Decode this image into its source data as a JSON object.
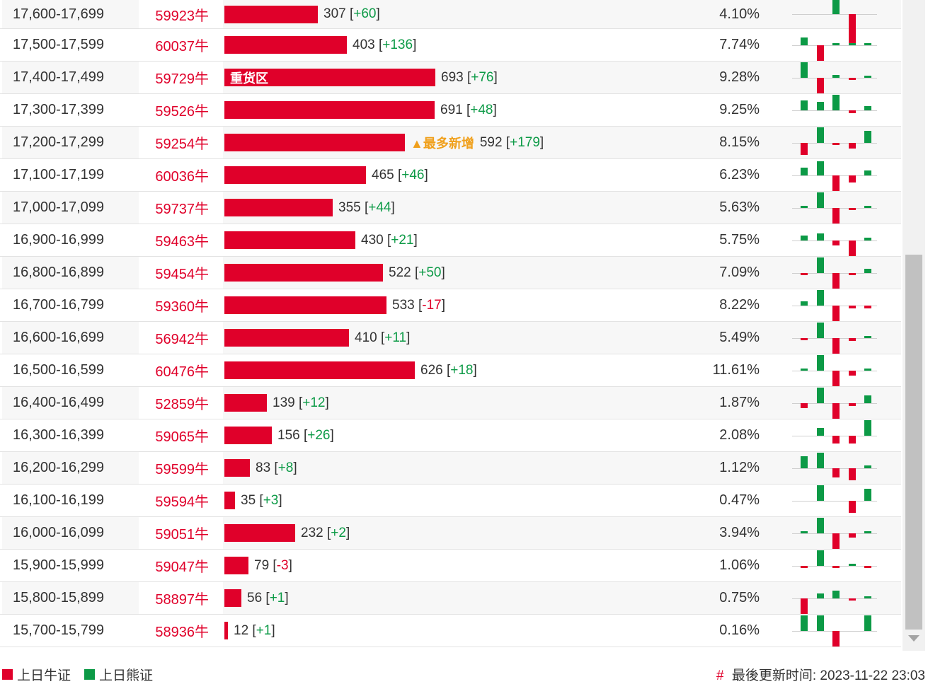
{
  "rows": [
    {
      "range": "17,600-17,699",
      "bull": "59923牛",
      "count": "307",
      "change": "+60",
      "pct": "4.10%",
      "bar": 307,
      "mini": [
        0,
        0,
        3,
        -4
      ]
    },
    {
      "range": "17,500-17,599",
      "bull": "60037牛",
      "count": "403",
      "change": "+136",
      "pct": "7.74%",
      "bar": 403,
      "mini": [
        1,
        -2,
        0.3,
        0.3,
        0.3
      ]
    },
    {
      "range": "17,400-17,499",
      "bull": "59729牛",
      "count": "693",
      "change": "+76",
      "pct": "9.28%",
      "bar": 693,
      "label": "重货区",
      "mini": [
        2,
        -2,
        0.4,
        -0.2,
        0.2
      ]
    },
    {
      "range": "17,300-17,399",
      "bull": "59526牛",
      "count": "691",
      "change": "+48",
      "pct": "9.25%",
      "bar": 691,
      "mini": [
        1.3,
        1.1,
        2,
        -0.4,
        0.5
      ]
    },
    {
      "range": "17,200-17,299",
      "bull": "59254牛",
      "count": "592",
      "change": "+179",
      "pct": "8.15%",
      "bar": 592,
      "tag": "▲最多新增",
      "mini": [
        -1.5,
        2,
        -0.2,
        -0.7,
        1.5
      ]
    },
    {
      "range": "17,100-17,199",
      "bull": "60036牛",
      "count": "465",
      "change": "+46",
      "pct": "6.23%",
      "bar": 465,
      "mini": [
        1,
        1.8,
        -2,
        -0.9,
        0.6
      ]
    },
    {
      "range": "17,000-17,099",
      "bull": "59737牛",
      "count": "355",
      "change": "+44",
      "pct": "5.63%",
      "bar": 355,
      "mini": [
        0.2,
        2,
        -2,
        -0.3,
        0.2
      ]
    },
    {
      "range": "16,900-16,999",
      "bull": "59463牛",
      "count": "430",
      "change": "+21",
      "pct": "5.75%",
      "bar": 430,
      "mini": [
        0.6,
        0.9,
        -0.6,
        -2,
        0.4
      ]
    },
    {
      "range": "16,800-16,899",
      "bull": "59454牛",
      "count": "522",
      "change": "+50",
      "pct": "7.09%",
      "bar": 522,
      "mini": [
        -0.2,
        2,
        -2,
        -0.3,
        0.5
      ]
    },
    {
      "range": "16,700-16,799",
      "bull": "59360牛",
      "count": "533",
      "change": "-17",
      "pct": "8.22%",
      "bar": 533,
      "mini": [
        0.5,
        2,
        -2,
        -0.4,
        -0.4
      ]
    },
    {
      "range": "16,600-16,699",
      "bull": "56942牛",
      "count": "410",
      "change": "+11",
      "pct": "5.49%",
      "bar": 410,
      "mini": [
        -0.2,
        2,
        -2,
        -0.4,
        0.2
      ]
    },
    {
      "range": "16,500-16,599",
      "bull": "60476牛",
      "count": "626",
      "change": "+18",
      "pct": "11.61%",
      "bar": 626,
      "mini": [
        0.3,
        2,
        -2,
        -0.6,
        0.2
      ]
    },
    {
      "range": "16,400-16,499",
      "bull": "52859牛",
      "count": "139",
      "change": "+12",
      "pct": "1.87%",
      "bar": 139,
      "mini": [
        -0.6,
        2,
        -2,
        -0.4,
        1
      ]
    },
    {
      "range": "16,300-16,399",
      "bull": "59065牛",
      "count": "156",
      "change": "+26",
      "pct": "2.08%",
      "bar": 156,
      "mini": [
        0,
        1,
        -1,
        -1,
        2
      ]
    },
    {
      "range": "16,200-16,299",
      "bull": "59599牛",
      "count": "83",
      "change": "+8",
      "pct": "1.12%",
      "bar": 83,
      "mini": [
        1.5,
        2,
        -1.2,
        -1.5,
        0.4
      ]
    },
    {
      "range": "16,100-16,199",
      "bull": "59594牛",
      "count": "35",
      "change": "+3",
      "pct": "0.47%",
      "bar": 35,
      "mini": [
        0,
        2,
        0,
        -1.5,
        1.5
      ]
    },
    {
      "range": "16,000-16,099",
      "bull": "59051牛",
      "count": "232",
      "change": "+2",
      "pct": "3.94%",
      "bar": 232,
      "mini": [
        0.2,
        2,
        -2,
        -0.5,
        0.2
      ]
    },
    {
      "range": "15,900-15,999",
      "bull": "59047牛",
      "count": "79",
      "change": "-3",
      "pct": "1.06%",
      "bar": 79,
      "mini": [
        -0.2,
        2,
        -0.3,
        0.1,
        -0.2
      ]
    },
    {
      "range": "15,800-15,899",
      "bull": "58897牛",
      "count": "56",
      "change": "+1",
      "pct": "0.75%",
      "bar": 56,
      "mini": [
        -2,
        0.6,
        1,
        -0.3,
        0.3
      ]
    },
    {
      "range": "15,700-15,799",
      "bull": "58936牛",
      "count": "12",
      "change": "+1",
      "pct": "0.16%",
      "bar": 12,
      "mini": [
        2,
        2,
        -2,
        0,
        2
      ]
    }
  ],
  "legend": {
    "bull": "上日牛证",
    "bear": "上日熊证"
  },
  "footer": {
    "hash": "#",
    "updated": "最後更新时间: 2023-11-22 23:03"
  },
  "colors": {
    "red": "#e0002a",
    "green": "#0c9a46",
    "tag": "#f0a01c"
  }
}
